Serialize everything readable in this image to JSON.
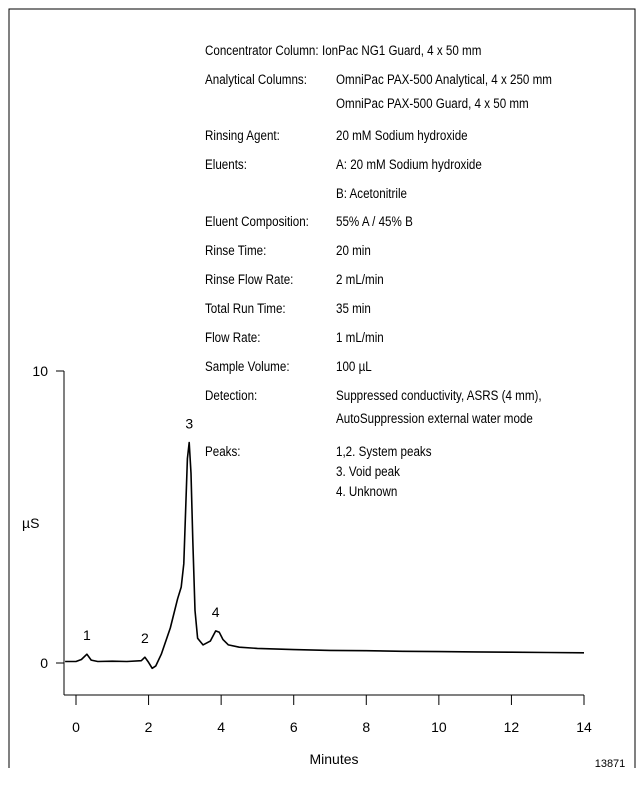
{
  "conditions": {
    "concentrator": {
      "label": "Concentrator Column:",
      "value": "IonPac NG1 Guard, 4 x 50 mm"
    },
    "analytical": {
      "label": "Analytical Columns:",
      "value1": "OmniPac PAX-500 Analytical, 4 x 250 mm",
      "value2": "OmniPac PAX-500 Guard, 4 x 50 mm"
    },
    "rinsing_agent": {
      "label": "Rinsing Agent:",
      "value": "20 mM Sodium hydroxide"
    },
    "eluents": {
      "label": "Eluents:",
      "value1": "A:  20 mM Sodium hydroxide",
      "value2": "B:  Acetonitrile"
    },
    "eluent_composition": {
      "label": "Eluent Composition:",
      "value": "55% A / 45% B"
    },
    "rinse_time": {
      "label": "Rinse Time:",
      "value": "20 min"
    },
    "rinse_flow": {
      "label": "Rinse Flow Rate:",
      "value": "2 mL/min"
    },
    "total_run": {
      "label": "Total Run Time:",
      "value": "35 min"
    },
    "flow_rate": {
      "label": "Flow Rate:",
      "value": "1 mL/min"
    },
    "sample_volume": {
      "label": "Sample Volume:",
      "value": "100 µL"
    },
    "detection": {
      "label": "Detection:",
      "value1": "Suppressed conductivity, ASRS (4 mm),",
      "value2": "AutoSuppression external water mode"
    },
    "peaks": {
      "label": "Peaks:",
      "value1": "1,2.  System peaks",
      "value2": "3.    Void peak",
      "value3": "4.    Unknown"
    }
  },
  "chart_data": {
    "type": "line",
    "xlabel": "Minutes",
    "ylabel": "µS",
    "xlim": [
      0,
      14
    ],
    "ylim": [
      0,
      10
    ],
    "x_ticks": [
      "0",
      "2",
      "4",
      "6",
      "8",
      "10",
      "12",
      "14"
    ],
    "y_ticks": [
      "0",
      "10"
    ],
    "series": [
      {
        "points": [
          [
            -0.3,
            0.05
          ],
          [
            0.0,
            0.05
          ],
          [
            0.15,
            0.12
          ],
          [
            0.3,
            0.3
          ],
          [
            0.42,
            0.1
          ],
          [
            0.6,
            0.05
          ],
          [
            1.0,
            0.06
          ],
          [
            1.4,
            0.05
          ],
          [
            1.8,
            0.08
          ],
          [
            1.9,
            0.2
          ],
          [
            2.0,
            0.02
          ],
          [
            2.1,
            -0.18
          ],
          [
            2.2,
            -0.1
          ],
          [
            2.35,
            0.3
          ],
          [
            2.6,
            1.2
          ],
          [
            2.8,
            2.2
          ],
          [
            2.9,
            2.6
          ],
          [
            2.97,
            3.4
          ],
          [
            3.02,
            5.2
          ],
          [
            3.07,
            7.0
          ],
          [
            3.12,
            7.55
          ],
          [
            3.17,
            6.5
          ],
          [
            3.22,
            4.2
          ],
          [
            3.28,
            1.8
          ],
          [
            3.35,
            0.85
          ],
          [
            3.5,
            0.62
          ],
          [
            3.7,
            0.75
          ],
          [
            3.85,
            1.1
          ],
          [
            3.95,
            1.05
          ],
          [
            4.05,
            0.8
          ],
          [
            4.2,
            0.62
          ],
          [
            4.5,
            0.54
          ],
          [
            5.0,
            0.5
          ],
          [
            6.0,
            0.46
          ],
          [
            7.0,
            0.43
          ],
          [
            8.0,
            0.42
          ],
          [
            9.0,
            0.4
          ],
          [
            10.0,
            0.39
          ],
          [
            11.0,
            0.38
          ],
          [
            12.0,
            0.37
          ],
          [
            13.0,
            0.36
          ],
          [
            14.0,
            0.35
          ]
        ]
      }
    ],
    "peak_labels": [
      {
        "label": "1",
        "x": 0.3,
        "y": 0.3
      },
      {
        "label": "2",
        "x": 1.9,
        "y": 0.2
      },
      {
        "label": "3",
        "x": 3.12,
        "y": 7.55
      },
      {
        "label": "4",
        "x": 3.85,
        "y": 1.1
      }
    ],
    "figure_id": "13871"
  },
  "colors": {
    "line": "#000000",
    "background": "#ffffff"
  }
}
